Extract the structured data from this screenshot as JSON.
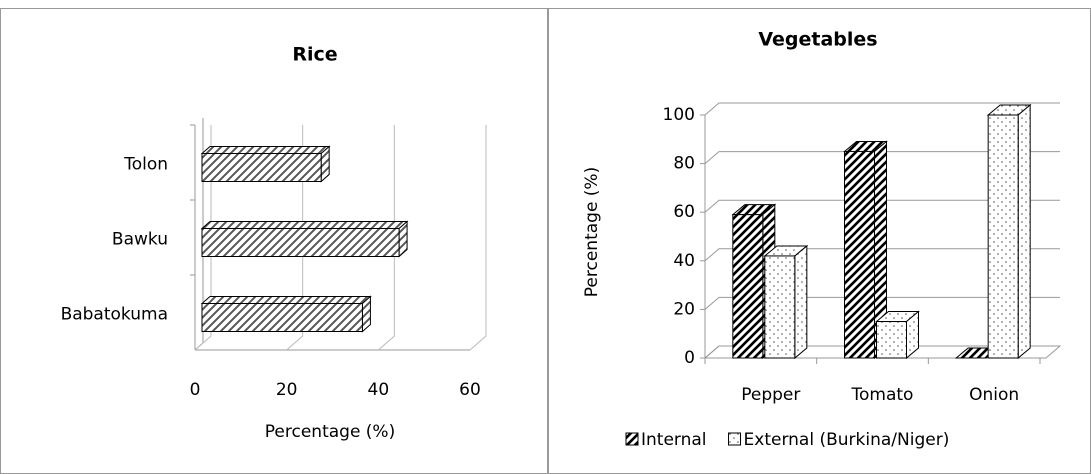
{
  "chart_data": [
    {
      "type": "bar",
      "horizontal": true,
      "title": "Rice",
      "xlabel": "Percentage (%)",
      "categories": [
        "Tolon",
        "Bawku",
        "Babatokuma"
      ],
      "values": [
        26,
        43,
        35
      ],
      "color": "#555555",
      "pattern": "hatch",
      "xlim": [
        0,
        60
      ],
      "xticks": [
        0,
        20,
        40,
        60
      ]
    },
    {
      "type": "bar",
      "title": "Vegetables",
      "ylabel": "Percentage (%)",
      "categories": [
        "Pepper",
        "Tomato",
        "Onion"
      ],
      "series": [
        {
          "name": "Internal",
          "color": "#000000",
          "pattern": "hatch",
          "values": [
            59,
            85,
            0
          ]
        },
        {
          "name": "External (Burkina/Niger)",
          "color": "#555555",
          "pattern": "dots",
          "values": [
            42,
            15,
            100
          ]
        }
      ],
      "ylim": [
        0,
        100
      ],
      "yticks": [
        0,
        20,
        40,
        60,
        80,
        100
      ],
      "grid": true
    }
  ]
}
